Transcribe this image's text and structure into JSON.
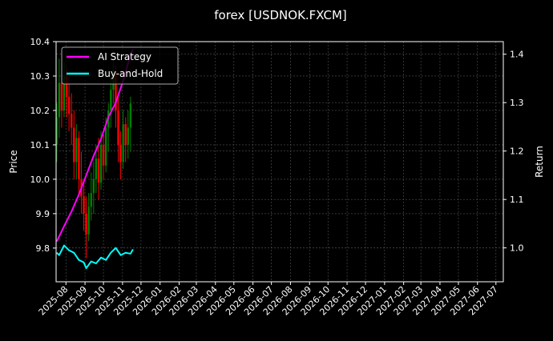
{
  "chart_data": {
    "type": "line",
    "title": "forex [USDNOK.FXCM]",
    "ylabel": "Price",
    "y2label": "Return",
    "xlim": [
      "2025-07-16",
      "2027-07-13"
    ],
    "ylim": [
      9.702,
      10.4
    ],
    "y2lim": [
      0.93,
      1.426
    ],
    "grid": true,
    "legend_placement": "top-left",
    "x_tick_labels": [
      "2025-08",
      "2025-09",
      "2025-10",
      "2025-11",
      "2025-12",
      "2026-01",
      "2026-02",
      "2026-03",
      "2026-04",
      "2026-05",
      "2026-06",
      "2026-07",
      "2026-08",
      "2026-09",
      "2026-10",
      "2026-11",
      "2026-12",
      "2027-01",
      "2027-02",
      "2027-03",
      "2027-04",
      "2027-05",
      "2027-06",
      "2027-07"
    ],
    "y_tick_labels": [
      "9.8",
      "9.9",
      "10.0",
      "10.1",
      "10.2",
      "10.3",
      "10.4"
    ],
    "y2_tick_labels": [
      "1.0",
      "1.1",
      "1.2",
      "1.3",
      "1.4"
    ],
    "colors": {
      "up": "#008000",
      "down": "#ff0000",
      "strategy": "#ff00ff",
      "buy_hold": "#00ffff",
      "grid": "#555555"
    },
    "candles": {
      "columns": [
        "date",
        "open",
        "high",
        "low",
        "close"
      ],
      "rows": [
        [
          "2025-07-17",
          10.1,
          10.22,
          10.05,
          10.18
        ],
        [
          "2025-07-21",
          10.18,
          10.35,
          10.12,
          10.28
        ],
        [
          "2025-07-25",
          10.28,
          10.33,
          10.15,
          10.2
        ],
        [
          "2025-07-29",
          10.2,
          10.34,
          10.18,
          10.3
        ],
        [
          "2025-08-02",
          10.3,
          10.32,
          10.18,
          10.24
        ],
        [
          "2025-08-06",
          10.24,
          10.3,
          10.14,
          10.19
        ],
        [
          "2025-08-10",
          10.19,
          10.25,
          10.1,
          10.15
        ],
        [
          "2025-08-14",
          10.15,
          10.2,
          10.0,
          10.05
        ],
        [
          "2025-08-18",
          10.05,
          10.16,
          10.0,
          10.12
        ],
        [
          "2025-08-22",
          10.12,
          10.14,
          9.95,
          10.0
        ],
        [
          "2025-08-26",
          10.0,
          10.08,
          9.9,
          9.95
        ],
        [
          "2025-08-30",
          9.95,
          10.0,
          9.85,
          9.9
        ],
        [
          "2025-09-03",
          9.9,
          9.95,
          9.77,
          9.84
        ],
        [
          "2025-09-07",
          9.84,
          9.96,
          9.82,
          9.92
        ],
        [
          "2025-09-11",
          9.92,
          10.02,
          9.88,
          9.96
        ],
        [
          "2025-09-15",
          9.96,
          10.05,
          9.9,
          10.0
        ],
        [
          "2025-09-19",
          10.0,
          10.1,
          9.96,
          10.06
        ],
        [
          "2025-09-23",
          10.06,
          10.12,
          9.94,
          9.99
        ],
        [
          "2025-09-27",
          9.99,
          10.14,
          9.97,
          10.1
        ],
        [
          "2025-10-01",
          10.1,
          10.13,
          10.0,
          10.04
        ],
        [
          "2025-10-05",
          10.04,
          10.18,
          10.02,
          10.15
        ],
        [
          "2025-10-09",
          10.15,
          10.22,
          10.08,
          10.2
        ],
        [
          "2025-10-13",
          10.2,
          10.3,
          10.15,
          10.26
        ],
        [
          "2025-10-17",
          10.26,
          10.37,
          10.22,
          10.31
        ],
        [
          "2025-10-21",
          10.31,
          10.33,
          10.15,
          10.2
        ],
        [
          "2025-10-25",
          10.2,
          10.24,
          10.05,
          10.1
        ],
        [
          "2025-10-29",
          10.1,
          10.14,
          10.0,
          10.05
        ],
        [
          "2025-11-02",
          10.05,
          10.2,
          10.03,
          10.16
        ],
        [
          "2025-11-06",
          10.16,
          10.18,
          10.05,
          10.1
        ],
        [
          "2025-11-10",
          10.1,
          10.2,
          10.06,
          10.15
        ],
        [
          "2025-11-14",
          10.15,
          10.24,
          10.08,
          10.22
        ]
      ]
    },
    "series": [
      {
        "name": "AI Strategy",
        "axis": "right",
        "dates": [
          "2025-07-17",
          "2025-07-29",
          "2025-08-10",
          "2025-08-22",
          "2025-09-03",
          "2025-09-15",
          "2025-09-27",
          "2025-10-09",
          "2025-10-21",
          "2025-11-02",
          "2025-11-14",
          "2025-11-18"
        ],
        "values": [
          1.013,
          1.045,
          1.075,
          1.11,
          1.15,
          1.19,
          1.225,
          1.27,
          1.3,
          1.345,
          1.4,
          1.41
        ]
      },
      {
        "name": "Buy-and-Hold",
        "axis": "right",
        "dates": [
          "2025-07-17",
          "2025-07-21",
          "2025-07-29",
          "2025-08-06",
          "2025-08-14",
          "2025-08-22",
          "2025-08-30",
          "2025-09-03",
          "2025-09-11",
          "2025-09-19",
          "2025-09-27",
          "2025-10-05",
          "2025-10-13",
          "2025-10-21",
          "2025-10-29",
          "2025-11-06",
          "2025-11-14",
          "2025-11-18"
        ],
        "values": [
          0.99,
          0.985,
          1.005,
          0.995,
          0.99,
          0.975,
          0.97,
          0.958,
          0.972,
          0.968,
          0.98,
          0.975,
          0.99,
          1.0,
          0.985,
          0.99,
          0.988,
          0.997
        ]
      }
    ]
  }
}
